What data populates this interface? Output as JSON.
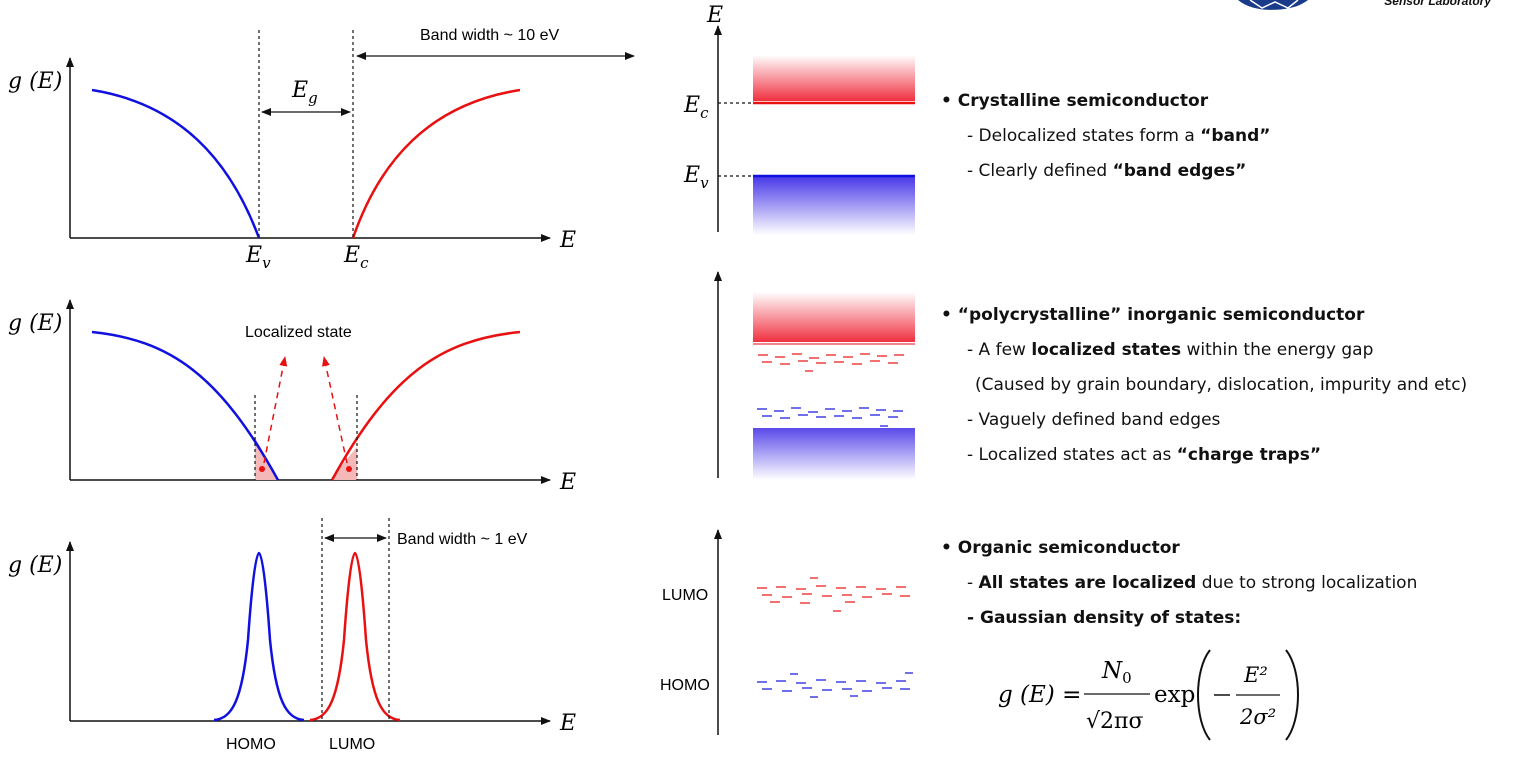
{
  "logo": {
    "text": "Sensor Laboratory"
  },
  "left_panels": {
    "axis_g": "g (E)",
    "axis_E": "E",
    "top": {
      "label_Ev": "Ev",
      "label_Ec": "Ec",
      "label_Eg": "Eg",
      "band_width_label": "Band width ~ 10 eV"
    },
    "middle": {
      "localized_label": "Localized state"
    },
    "bottom": {
      "band_width_label": "Band width ~ 1 eV",
      "homo": "HOMO",
      "lumo": "LUMO"
    }
  },
  "band_diagrams": {
    "axis_E": "E",
    "crystalline": {
      "label_Ec": "Ec",
      "label_Ev": "Ev"
    },
    "organic": {
      "lumo": "LUMO",
      "homo": "HOMO"
    }
  },
  "descriptions": {
    "crystalline": {
      "heading": "Crystalline semiconductor",
      "line1_pre": "Delocalized states form a ",
      "line1_bold": "“band”",
      "line2_pre": "Clearly defined ",
      "line2_bold": "“band edges”"
    },
    "polycrystalline": {
      "heading": "“polycrystalline” inorganic semiconductor",
      "line1_pre": "A few ",
      "line1_bold": "localized states",
      "line1_post": " within the energy gap",
      "line2": "(Caused by grain boundary, dislocation, impurity and etc)",
      "line3": "Vaguely defined band edges",
      "line4_pre": "Localized states act as ",
      "line4_bold": "“charge traps”"
    },
    "organic": {
      "heading": "Organic semiconductor",
      "line1_bold": "All states are localized",
      "line1_post": " due to strong localization",
      "line2_bold": "Gaussian density of states:",
      "formula": {
        "lhs": "g (E) =",
        "numerator": "N0",
        "denominator": "√2πσ",
        "exp": "exp",
        "inner_numerator": "E²",
        "inner_denominator": "2σ²"
      }
    }
  },
  "colors": {
    "valence": "#1010e0",
    "conduction": "#e81010",
    "trap_fill": "#f4b8b8"
  }
}
